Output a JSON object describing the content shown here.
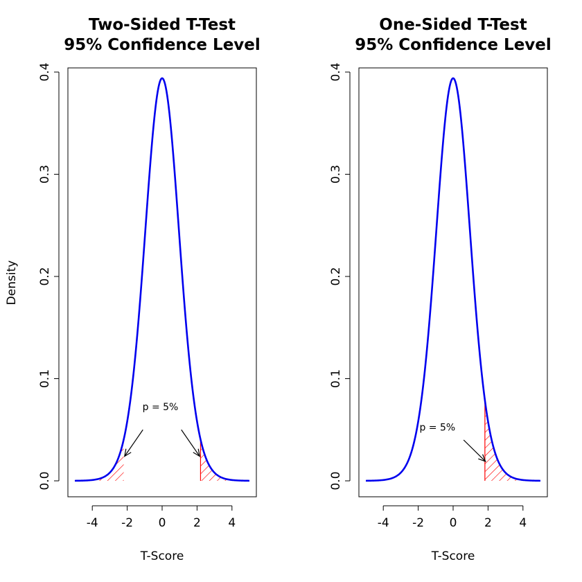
{
  "chart_data": [
    {
      "type": "line",
      "title_line1": "Two-Sided T-Test",
      "title_line2": "95% Confidence Level",
      "xlabel": "T-Score",
      "ylabel": "Density",
      "xlim": [
        -5,
        5
      ],
      "ylim": [
        0,
        0.4
      ],
      "xticks": [
        -4,
        -2,
        0,
        2,
        4
      ],
      "xtick_labels": [
        "-4",
        "-2",
        "0",
        "2",
        "4"
      ],
      "yticks": [
        0.0,
        0.1,
        0.2,
        0.3,
        0.4
      ],
      "ytick_labels": [
        "0.0",
        "0.1",
        "0.2",
        "0.3",
        "0.4"
      ],
      "distribution": "Student t",
      "df": 20,
      "curve_color": "#0000ee",
      "shade_color": "#ff0000",
      "shaded_regions": [
        [
          -5,
          -2.2
        ],
        [
          2.2,
          5
        ]
      ],
      "annotation": "p = 5%",
      "annotation_pos": [
        -0.1,
        0.069
      ],
      "arrows": [
        {
          "from": [
            -1.1,
            0.05
          ],
          "to": [
            -2.15,
            0.024
          ]
        },
        {
          "from": [
            1.1,
            0.05
          ],
          "to": [
            2.15,
            0.024
          ]
        }
      ]
    },
    {
      "type": "line",
      "title_line1": "One-Sided T-Test",
      "title_line2": "95% Confidence Level",
      "xlabel": "T-Score",
      "ylabel": "",
      "xlim": [
        -5,
        5
      ],
      "ylim": [
        0,
        0.4
      ],
      "xticks": [
        -4,
        -2,
        0,
        2,
        4
      ],
      "xtick_labels": [
        "-4",
        "-2",
        "0",
        "2",
        "4"
      ],
      "yticks": [
        0.0,
        0.1,
        0.2,
        0.3,
        0.4
      ],
      "ytick_labels": [
        "0.0",
        "0.1",
        "0.2",
        "0.3",
        "0.4"
      ],
      "distribution": "Student t",
      "df": 20,
      "curve_color": "#0000ee",
      "shade_color": "#ff0000",
      "shaded_regions": [
        [
          1.82,
          5
        ]
      ],
      "annotation": "p = 5%",
      "annotation_pos": [
        -0.9,
        0.049
      ],
      "arrows": [
        {
          "from": [
            0.6,
            0.04
          ],
          "to": [
            1.85,
            0.019
          ]
        }
      ]
    }
  ]
}
